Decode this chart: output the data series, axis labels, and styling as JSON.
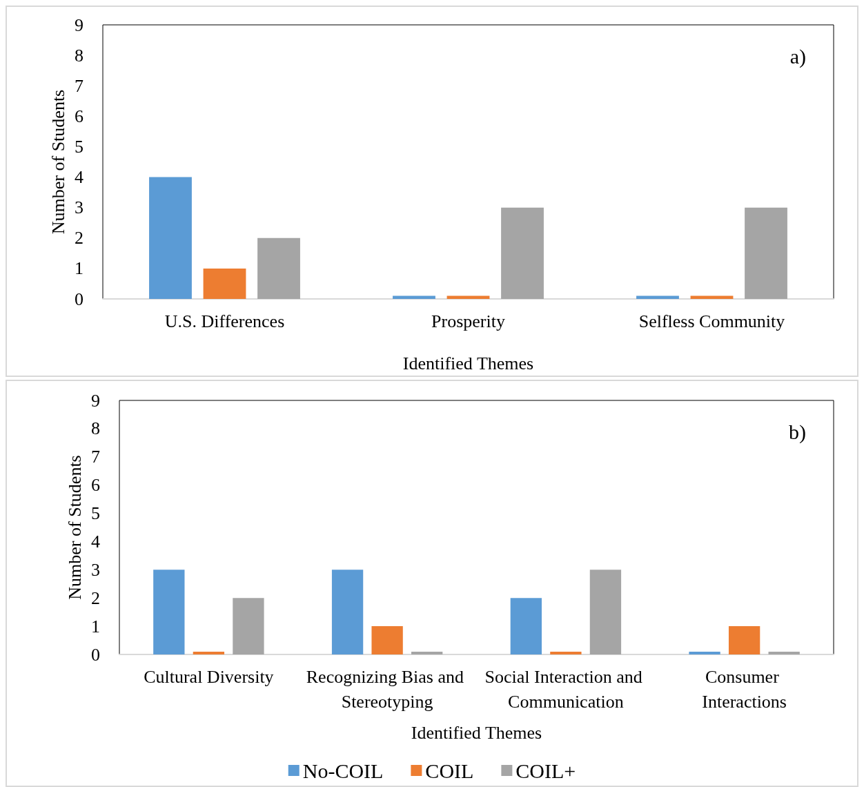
{
  "chart_data": [
    {
      "type": "bar",
      "xlabel": "Identified Themes",
      "ylabel": "Number of Students",
      "categories": [
        "U.S. Differences",
        "Prosperity",
        "Selfless Community"
      ],
      "series": [
        {
          "color": "#5b9bd5",
          "values": [
            4,
            0.1,
            0.1
          ]
        },
        {
          "color": "#ed7d31",
          "values": [
            1,
            0.1,
            0.1
          ]
        },
        {
          "color": "#a5a5a5",
          "values": [
            2,
            3,
            3
          ]
        }
      ],
      "ylim": [
        0,
        9
      ],
      "yticks": [
        0,
        1,
        2,
        3,
        4,
        5,
        6,
        7,
        8,
        9
      ],
      "grid": false,
      "legend": false,
      "annotations": [
        "a)"
      ]
    },
    {
      "type": "bar",
      "xlabel": "Identified Themes",
      "ylabel": "Number of Students",
      "categories": [
        "Cultural Diversity",
        "Recognizing Bias and Stereotyping",
        "Social Interaction and Communication",
        "Consumer Interactions"
      ],
      "series": [
        {
          "name": "No-COIL",
          "color": "#5b9bd5",
          "values": [
            3,
            3,
            2,
            0.1
          ]
        },
        {
          "name": "COIL",
          "color": "#ed7d31",
          "values": [
            0.1,
            1,
            0.1,
            1
          ]
        },
        {
          "name": "COIL+",
          "color": "#a5a5a5",
          "values": [
            2,
            0.1,
            3,
            0.1
          ]
        }
      ],
      "ylim": [
        0,
        9
      ],
      "yticks": [
        0,
        1,
        2,
        3,
        4,
        5,
        6,
        7,
        8,
        9
      ],
      "grid": false,
      "legend": "bottom",
      "annotations": [
        "b)"
      ]
    }
  ]
}
